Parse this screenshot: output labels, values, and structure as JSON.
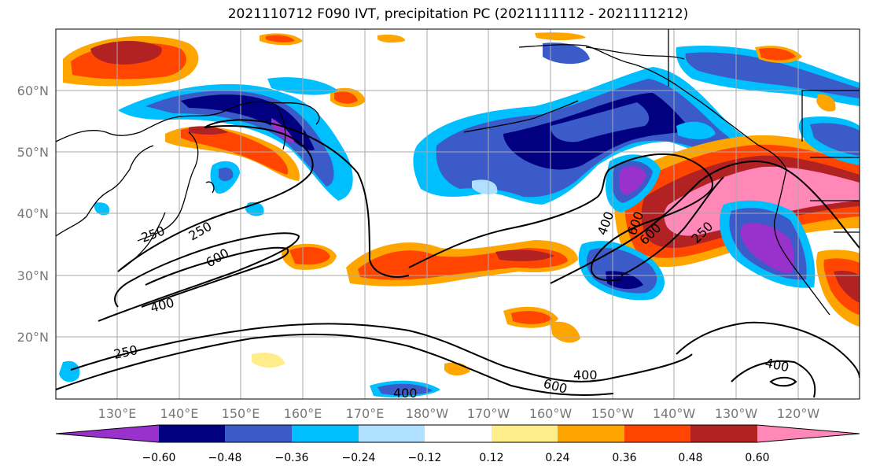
{
  "title": "2021110712 F090 IVT, precipitation PC (2021111112 - 2021111212)",
  "longitude_labels": [
    "130°E",
    "140°E",
    "150°E",
    "160°E",
    "170°E",
    "180°W",
    "170°W",
    "160°W",
    "150°W",
    "140°W",
    "130°W",
    "120°W"
  ],
  "latitude_labels": [
    "60°N",
    "50°N",
    "40°N",
    "30°N",
    "20°N"
  ],
  "colorbar": {
    "tick_labels": [
      "−0.60",
      "−0.48",
      "−0.36",
      "−0.24",
      "−0.12",
      "0.12",
      "0.24",
      "0.36",
      "0.48",
      "0.60"
    ],
    "colors": [
      "#9932cc",
      "#000080",
      "#3a5bc8",
      "#00bfff",
      "#b0e0ff",
      "#ffffff",
      "#ffec8b",
      "#ffa500",
      "#ff4500",
      "#b22222",
      "#ff88b8"
    ]
  },
  "contour_labels": {
    "c250a": "250",
    "c250b": "250",
    "c250c": "250",
    "c250d": "250",
    "c600a": "600",
    "c600b": "600",
    "c600c": "600",
    "c600d": "600",
    "c400a": "400",
    "c400b": "400",
    "c400c": "400",
    "c400d": "400",
    "c400e": "400"
  }
}
